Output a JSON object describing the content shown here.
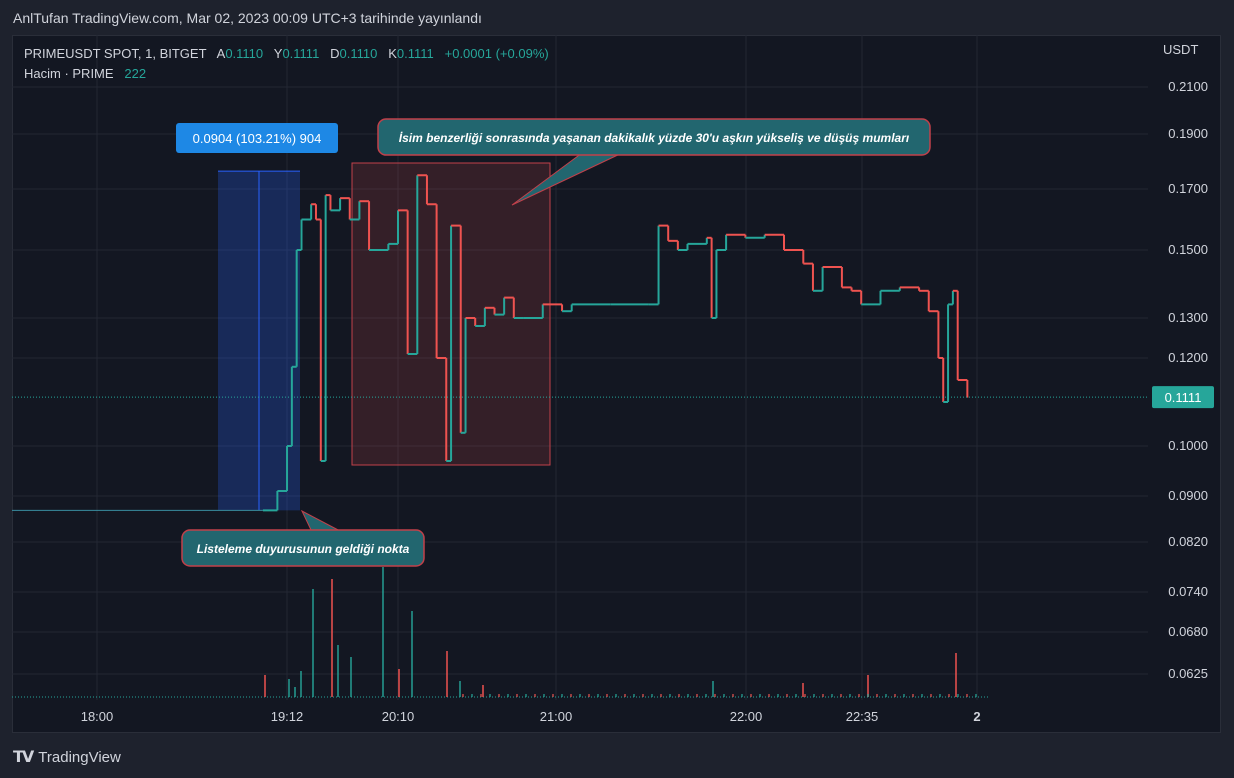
{
  "header": {
    "published": "AnlTufan TradingView.com, Mar 02, 2023 00:09 UTC+3 tarihinde yayınlandı"
  },
  "legend": {
    "symbol": "PRIMEUSDT SPOT, 1, BITGET",
    "o_label": "A",
    "o_value": "0.1110",
    "h_label": "Y",
    "h_value": "0.1111",
    "l_label": "D",
    "l_value": "0.1110",
    "c_label": "K",
    "c_value": "0.1111",
    "change": "+0.0001 (+0.09%)",
    "volume_label": "Hacim · PRIME",
    "volume_value": "222"
  },
  "currency": "USDT",
  "footer": {
    "brand": "TradingView"
  },
  "colors": {
    "up": "#26a69a",
    "down": "#ef5350",
    "measure": "#2962ff",
    "callout": "#22666f",
    "callout_border": "#c2404a"
  },
  "chart_data": {
    "type": "candlestick",
    "y_ticks": [
      "0.2100",
      "0.1900",
      "0.1700",
      "0.1500",
      "0.1300",
      "0.1200",
      "0.1000",
      "0.0900",
      "0.0820",
      "0.0740",
      "0.0680",
      "0.0625"
    ],
    "x_ticks": [
      "18:00",
      "19:12",
      "20:10",
      "21:00",
      "22:00",
      "22:35",
      "2"
    ],
    "last_price": "0.1111",
    "measure_label": "0.0904 (103.21%) 904",
    "annotations": [
      "İsim benzerliği sonrasında yaşanan dakikalık yüzde 30'u aşkın yükseliş ve düşüş mumları",
      "Listeleme duyurusunun geldiği nokta"
    ],
    "price_path": [
      [
        0,
        0.0875
      ],
      [
        0.26,
        0.0875
      ],
      [
        0.275,
        0.091
      ],
      [
        0.285,
        0.1
      ],
      [
        0.29,
        0.118
      ],
      [
        0.295,
        0.15
      ],
      [
        0.3,
        0.16
      ],
      [
        0.31,
        0.165
      ],
      [
        0.315,
        0.16
      ],
      [
        0.32,
        0.097
      ],
      [
        0.325,
        0.168
      ],
      [
        0.33,
        0.163
      ],
      [
        0.34,
        0.167
      ],
      [
        0.35,
        0.16
      ],
      [
        0.36,
        0.166
      ],
      [
        0.37,
        0.15
      ],
      [
        0.39,
        0.152
      ],
      [
        0.4,
        0.163
      ],
      [
        0.41,
        0.121
      ],
      [
        0.42,
        0.175
      ],
      [
        0.43,
        0.165
      ],
      [
        0.44,
        0.12
      ],
      [
        0.45,
        0.097
      ],
      [
        0.455,
        0.158
      ],
      [
        0.465,
        0.103
      ],
      [
        0.47,
        0.13
      ],
      [
        0.48,
        0.128
      ],
      [
        0.49,
        0.133
      ],
      [
        0.5,
        0.131
      ],
      [
        0.51,
        0.136
      ],
      [
        0.52,
        0.13
      ],
      [
        0.53,
        0.13
      ],
      [
        0.55,
        0.134
      ],
      [
        0.57,
        0.132
      ],
      [
        0.58,
        0.134
      ],
      [
        0.62,
        0.134
      ],
      [
        0.66,
        0.134
      ],
      [
        0.67,
        0.158
      ],
      [
        0.68,
        0.153
      ],
      [
        0.69,
        0.15
      ],
      [
        0.7,
        0.152
      ],
      [
        0.72,
        0.154
      ],
      [
        0.725,
        0.13
      ],
      [
        0.73,
        0.15
      ],
      [
        0.74,
        0.155
      ],
      [
        0.76,
        0.154
      ],
      [
        0.78,
        0.155
      ],
      [
        0.8,
        0.15
      ],
      [
        0.82,
        0.146
      ],
      [
        0.83,
        0.138
      ],
      [
        0.84,
        0.145
      ],
      [
        0.86,
        0.139
      ],
      [
        0.87,
        0.138
      ],
      [
        0.88,
        0.134
      ],
      [
        0.9,
        0.138
      ],
      [
        0.92,
        0.139
      ],
      [
        0.94,
        0.138
      ],
      [
        0.95,
        0.132
      ],
      [
        0.96,
        0.12
      ],
      [
        0.965,
        0.11
      ],
      [
        0.97,
        0.134
      ],
      [
        0.975,
        0.138
      ],
      [
        0.98,
        0.115
      ],
      [
        0.99,
        0.111
      ]
    ],
    "volume_profile": [
      0,
      0,
      0,
      0,
      0,
      0,
      0,
      0,
      0,
      0,
      0,
      0,
      0,
      0,
      0,
      0,
      0,
      0,
      0,
      0,
      0,
      0,
      0,
      0,
      0,
      0,
      0,
      0,
      0,
      0,
      0,
      0,
      0,
      0,
      0,
      0,
      0,
      0,
      0,
      0,
      0,
      0,
      0,
      0,
      0,
      0,
      0,
      0,
      0,
      0,
      0,
      0,
      0,
      0,
      0,
      0,
      0,
      0,
      0,
      0,
      0,
      0,
      0,
      0,
      0,
      0,
      0,
      0,
      0,
      0,
      0,
      0,
      0,
      0,
      0,
      0,
      0,
      0,
      0,
      0,
      0,
      0,
      0,
      0,
      0,
      0,
      0,
      0,
      0,
      0,
      0,
      0,
      0,
      0,
      0,
      0,
      0,
      0,
      0,
      0,
      0,
      0,
      0,
      0,
      0,
      0,
      0,
      0,
      0,
      0,
      0,
      0,
      0,
      0,
      0,
      0,
      0,
      0,
      0,
      0,
      0,
      0,
      0,
      0,
      0,
      0,
      0,
      0,
      0,
      0,
      0,
      0,
      0,
      0,
      0,
      0,
      0,
      0,
      0,
      0,
      0,
      0,
      0,
      0,
      0,
      0,
      0,
      0,
      0,
      0,
      0,
      0,
      0,
      0,
      0,
      0,
      0,
      0,
      0,
      0,
      0,
      0,
      0,
      0,
      0,
      0,
      0,
      0,
      0,
      0,
      0,
      0,
      0,
      0,
      0,
      0,
      0,
      0,
      0,
      0,
      0,
      0,
      0,
      0,
      0,
      0,
      0,
      0,
      0,
      0,
      0,
      0,
      0,
      0,
      0,
      0,
      0,
      0,
      0,
      0,
      0,
      0,
      0,
      0,
      0,
      0,
      0,
      0,
      0,
      0,
      0,
      0,
      0,
      0,
      0,
      0,
      0,
      0,
      0,
      0,
      0,
      0,
      0,
      0,
      0,
      0,
      0,
      0,
      0,
      0,
      0,
      0,
      0,
      0,
      0,
      0,
      0,
      0,
      0,
      0,
      0,
      0,
      0,
      0,
      0,
      0,
      0,
      0,
      0,
      0,
      0,
      0,
      0,
      0,
      0,
      0,
      0,
      0,
      0,
      0,
      0,
      0,
      0,
      0,
      0,
      0,
      0,
      0,
      0,
      0,
      0,
      0,
      0,
      0,
      0,
      0,
      0,
      0,
      0,
      0,
      0,
      0,
      0,
      0,
      0,
      0,
      0,
      0
    ]
  }
}
